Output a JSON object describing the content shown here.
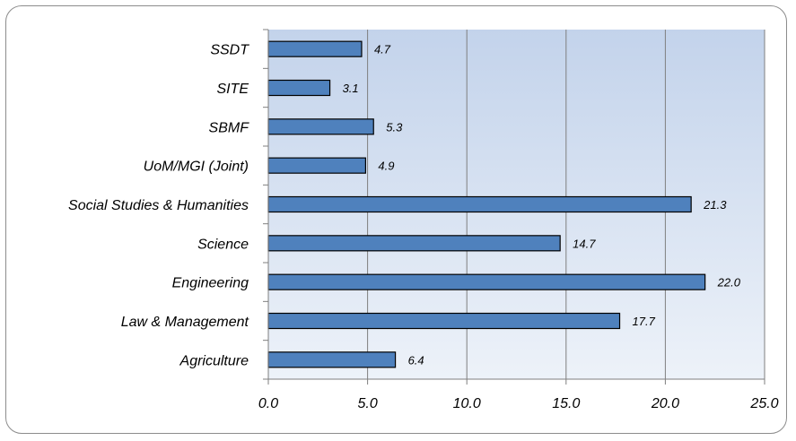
{
  "chart_data": {
    "type": "bar",
    "orientation": "horizontal",
    "categories": [
      "SSDT",
      "SITE",
      "SBMF",
      "UoM/MGI (Joint)",
      "Social Studies & Humanities",
      "Science",
      "Engineering",
      "Law & Management",
      "Agriculture"
    ],
    "values": [
      4.7,
      3.1,
      5.3,
      4.9,
      21.3,
      14.7,
      22.0,
      17.7,
      6.4
    ],
    "value_labels": [
      "4.7",
      "3.1",
      "5.3",
      "4.9",
      "21.3",
      "14.7",
      "22.0",
      "17.7",
      "6.4"
    ],
    "x_ticks": [
      "0.0",
      "5.0",
      "10.0",
      "15.0",
      "20.0",
      "25.0"
    ],
    "xlim": [
      0,
      25
    ],
    "grid": true,
    "legend": false,
    "colors": {
      "bar_fill": "#4f81bd",
      "bar_stroke": "#000000",
      "plot_bg_top": "#c3d3eb",
      "plot_bg_bottom": "#edf2f9",
      "gridline": "#7f7f7f"
    }
  }
}
